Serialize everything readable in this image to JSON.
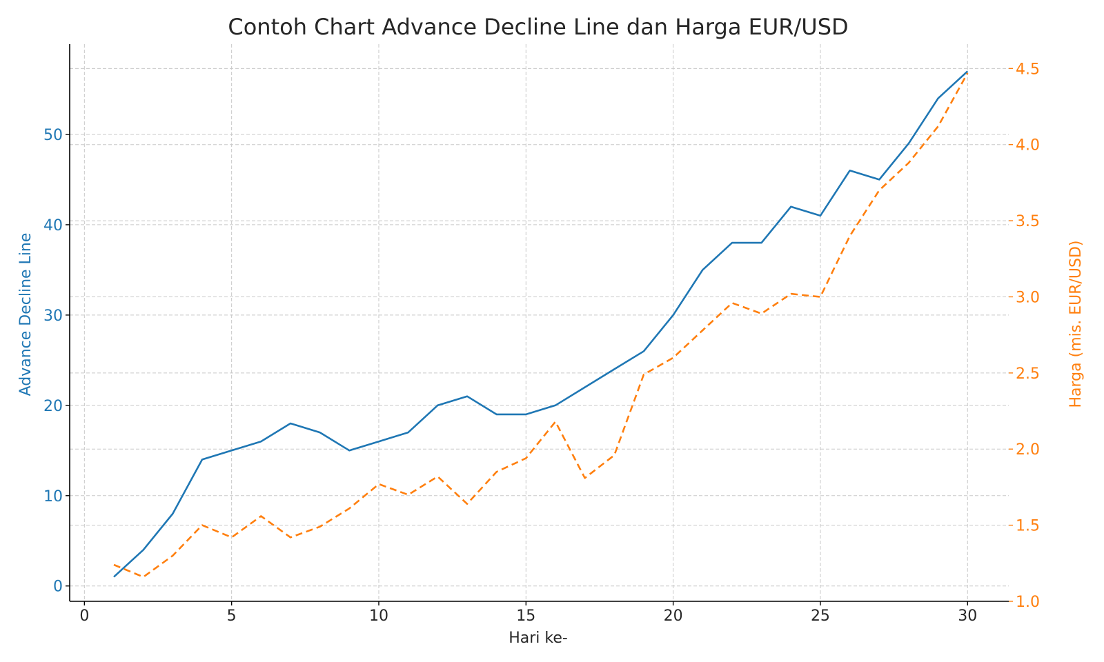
{
  "chart_data": {
    "type": "line",
    "title": "Contoh Chart Advance Decline Line dan Harga EUR/USD",
    "xlabel": "Hari ke-",
    "ylabel_left": "Advance Decline Line",
    "ylabel_right": "Harga (mis. EUR/USD)",
    "x": [
      1,
      2,
      3,
      4,
      5,
      6,
      7,
      8,
      9,
      10,
      11,
      12,
      13,
      14,
      15,
      16,
      17,
      18,
      19,
      20,
      21,
      22,
      23,
      24,
      25,
      26,
      27,
      28,
      29,
      30
    ],
    "xlim": [
      -0.5,
      31.4
    ],
    "ylim_left": [
      -1.7,
      60
    ],
    "ylim_right": [
      1.0,
      4.66
    ],
    "x_ticks": [
      0,
      5,
      10,
      15,
      20,
      25,
      30
    ],
    "y_ticks_left": [
      0,
      10,
      20,
      30,
      40,
      50
    ],
    "y_ticks_right": [
      1.0,
      1.5,
      2.0,
      2.5,
      3.0,
      3.5,
      4.0,
      4.5
    ],
    "y_tick_labels_right": [
      "1.0",
      "1.5",
      "2.0",
      "2.5",
      "3.0",
      "3.5",
      "4.0",
      "4.5"
    ],
    "grid": true,
    "series": [
      {
        "axis": "left",
        "color": "#1f77b4",
        "style": "solid",
        "values": [
          1,
          4,
          8,
          14,
          15,
          16,
          18,
          17,
          15,
          16,
          17,
          20,
          21,
          19,
          19,
          20,
          22,
          24,
          26,
          30,
          35,
          38,
          38,
          42,
          41,
          46,
          45,
          49,
          54,
          57
        ]
      },
      {
        "axis": "right",
        "color": "#ff7f0e",
        "style": "dashed",
        "values": [
          1.24,
          1.16,
          1.3,
          1.5,
          1.42,
          1.56,
          1.42,
          1.49,
          1.61,
          1.77,
          1.7,
          1.82,
          1.64,
          1.85,
          1.94,
          2.18,
          1.81,
          1.96,
          2.49,
          2.6,
          2.78,
          2.96,
          2.89,
          3.02,
          3.0,
          3.4,
          3.7,
          3.88,
          4.12,
          4.47
        ]
      }
    ]
  }
}
